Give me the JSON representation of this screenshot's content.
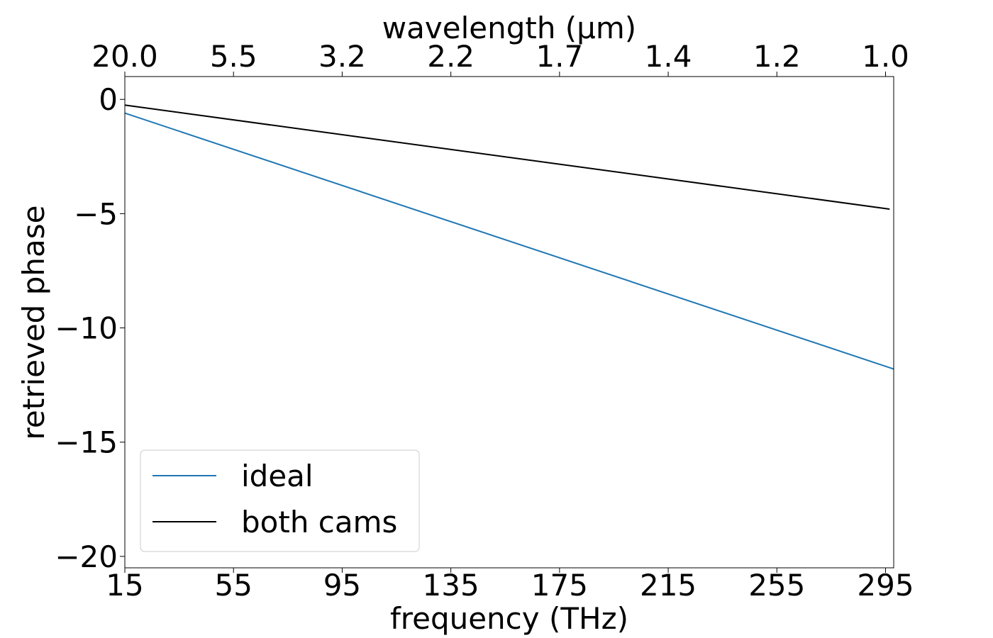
{
  "chart_data": {
    "type": "line",
    "xlabel": "frequency (THz)",
    "xlabel_top": "wavelength (μm)",
    "ylabel": "retrieved phase",
    "xlim": [
      15,
      298
    ],
    "ylim": [
      -20.5,
      1
    ],
    "x_ticks": [
      15,
      55,
      95,
      135,
      175,
      215,
      255,
      295
    ],
    "x_tick_labels": [
      "15",
      "55",
      "95",
      "135",
      "175",
      "215",
      "255",
      "295"
    ],
    "top_ticks": [
      15,
      55,
      95,
      135,
      175,
      215,
      255,
      295
    ],
    "top_tick_labels": [
      "20.0",
      "5.5",
      "3.2",
      "2.2",
      "1.7",
      "1.4",
      "1.2",
      "1.0"
    ],
    "y_ticks": [
      0,
      -5,
      -10,
      -15,
      -20
    ],
    "y_tick_labels": [
      "0",
      "−5",
      "−10",
      "−15",
      "−20"
    ],
    "grid": false,
    "legend_placement": "lower-left",
    "series": [
      {
        "name": "ideal",
        "color": "#1f77b4",
        "x": [
          15,
          298
        ],
        "y": [
          -0.6,
          -11.8
        ]
      },
      {
        "name": "both cams",
        "color": "#000000",
        "x": [
          15,
          296.5
        ],
        "y": [
          -0.25,
          -4.8
        ]
      }
    ]
  }
}
